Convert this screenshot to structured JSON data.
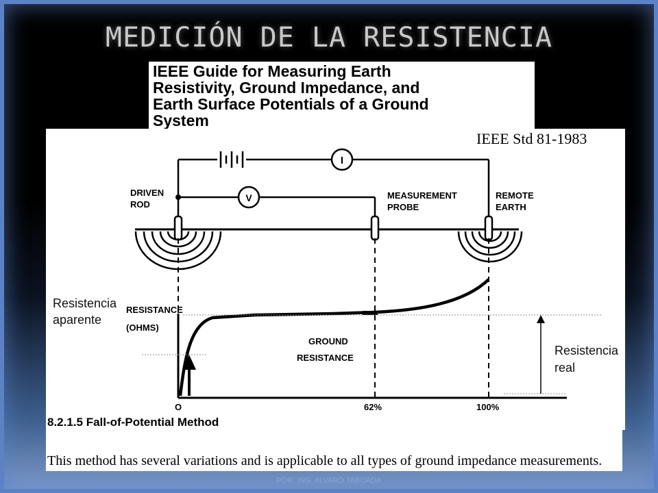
{
  "slide": {
    "title": "MEDICIÓN DE LA RESISTENCIA",
    "footer": "POR: ING. ALVARO TABOADA"
  },
  "ieee_header": {
    "lines": [
      "IEEE Guide for Measuring Earth",
      "Resistivity, Ground Impedance, and",
      "Earth Surface Potentials of a Ground",
      "System"
    ]
  },
  "diagram": {
    "standard": "IEEE Std 81-1983",
    "ammeter_symbol": "I",
    "voltmeter_symbol": "V",
    "driven_rod_label": [
      "DRIVEN",
      "ROD"
    ],
    "probe_label": [
      "MEASUREMENT",
      "PROBE"
    ],
    "remote_label": [
      "REMOTE",
      "EARTH"
    ],
    "resistance_axis_label": [
      "RESISTANCE",
      "(OHMS)"
    ],
    "ground_resistance_label": [
      "GROUND",
      "RESISTANCE"
    ],
    "x_ticks": [
      "O",
      "62%",
      "100%"
    ],
    "annotation_apparent": [
      "Resistencia",
      "aparente"
    ],
    "annotation_real": [
      "Resistencia",
      "real"
    ]
  },
  "caption": {
    "section": "8.2.1.5 Fall-of-Potential Method",
    "body": "This method has several variations and is applicable to all types of ground impedance measurements."
  }
}
